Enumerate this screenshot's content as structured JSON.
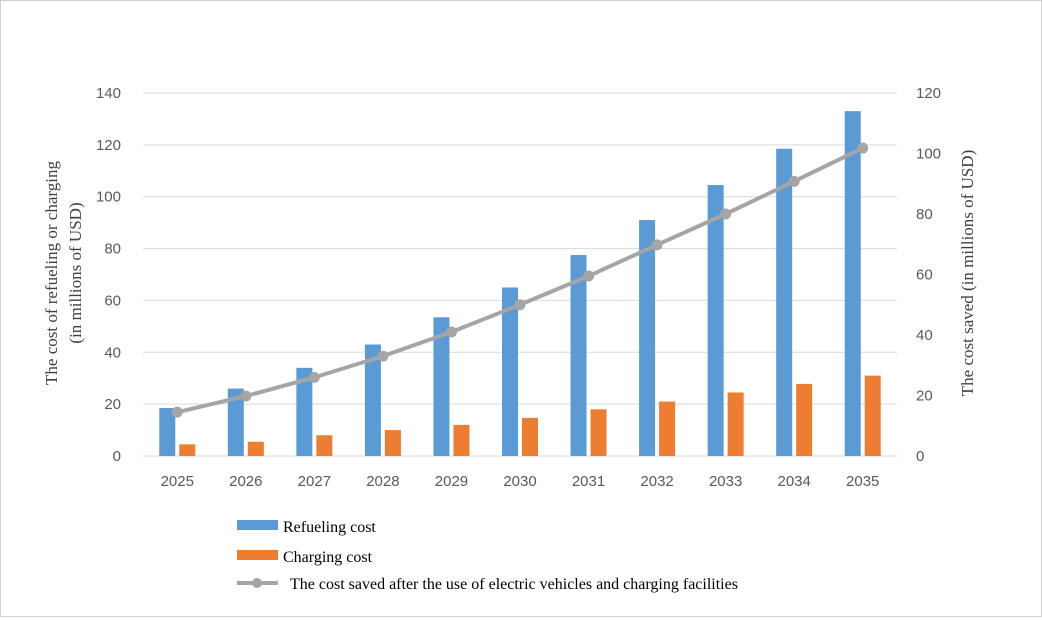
{
  "chart_data": {
    "type": "bar",
    "categories": [
      "2025",
      "2026",
      "2027",
      "2028",
      "2029",
      "2030",
      "2031",
      "2032",
      "2033",
      "2034",
      "2035"
    ],
    "series": [
      {
        "name": "Refueling cost",
        "kind": "bar",
        "axis": "left",
        "color": "#5b9bd5",
        "values": [
          18.5,
          26,
          34,
          43,
          53.5,
          65,
          77.5,
          91,
          104.5,
          118.5,
          133
        ]
      },
      {
        "name": "Charging cost",
        "kind": "bar",
        "axis": "left",
        "color": "#ed7d31",
        "values": [
          4.5,
          5.5,
          8,
          10,
          12,
          14.7,
          18,
          21,
          24.5,
          27.8,
          31
        ]
      },
      {
        "name": "The cost saved after the use of electric vehicles and charging facilities",
        "kind": "line",
        "axis": "right",
        "color": "#a5a5a5",
        "values": [
          14.5,
          19.8,
          26,
          33,
          41,
          50,
          59.5,
          69.8,
          80,
          90.8,
          101.8
        ]
      }
    ],
    "y_left": {
      "label_line1": "The cost of refueling or charging",
      "label_line2": "(in millions  of USD)",
      "ylim": [
        0,
        140
      ],
      "ticks": [
        "0",
        "20",
        "40",
        "60",
        "80",
        "100",
        "120",
        "140"
      ]
    },
    "y_right": {
      "label": "The cost saved (in millions  of USD)",
      "ylim": [
        0,
        120
      ],
      "ticks": [
        "0",
        "20",
        "40",
        "60",
        "80",
        "100",
        "120"
      ]
    },
    "grid": true,
    "legend_position": "bottom"
  }
}
